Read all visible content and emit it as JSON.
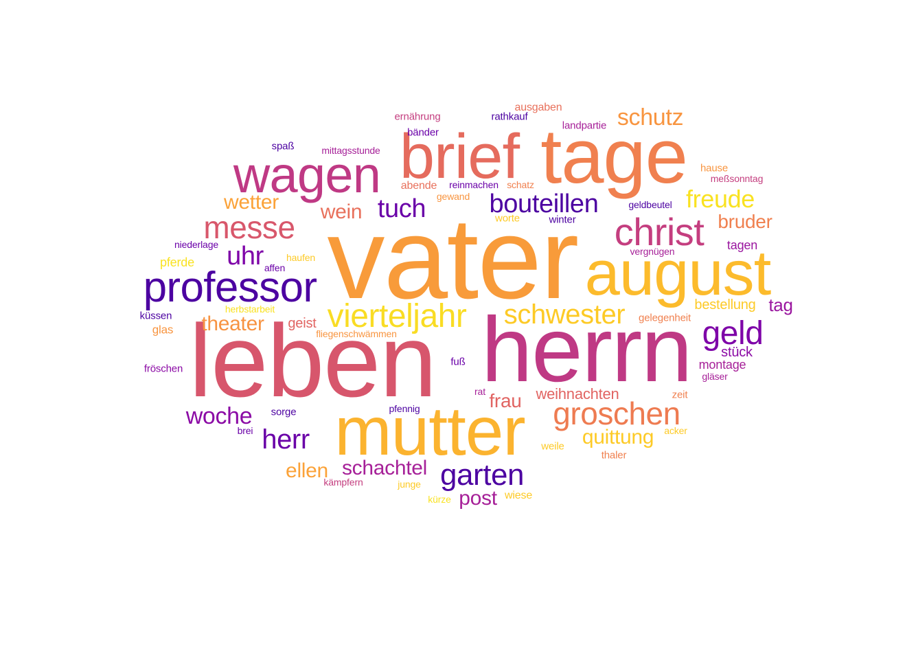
{
  "words": [
    {
      "text": "vater",
      "color": "#F89B3A"
    },
    {
      "text": "leben",
      "color": "#D7566C"
    },
    {
      "text": "herrn",
      "color": "#BF3984"
    },
    {
      "text": "mutter",
      "color": "#FBB32F"
    },
    {
      "text": "tage",
      "color": "#F0804F"
    },
    {
      "text": "brief",
      "color": "#E56B5D"
    },
    {
      "text": "august",
      "color": "#FCBB2C"
    },
    {
      "text": "wagen",
      "color": "#BF3984"
    },
    {
      "text": "professor",
      "color": "#4C02A1"
    },
    {
      "text": "christ",
      "color": "#C43E7F"
    },
    {
      "text": "vierteljahr",
      "color": "#F9DC24"
    },
    {
      "text": "geld",
      "color": "#7E03A8"
    },
    {
      "text": "groschen",
      "color": "#EE7B51"
    },
    {
      "text": "messe",
      "color": "#D8576B"
    },
    {
      "text": "schwester",
      "color": "#FDCA26"
    },
    {
      "text": "garten",
      "color": "#4C02A1"
    },
    {
      "text": "bouteillen",
      "color": "#4C02A1"
    },
    {
      "text": "schutz",
      "color": "#F89540"
    },
    {
      "text": "freude",
      "color": "#F9E221"
    },
    {
      "text": "tuch",
      "color": "#6A00A8"
    },
    {
      "text": "herr",
      "color": "#6A00A8"
    },
    {
      "text": "uhr",
      "color": "#7E03A8"
    },
    {
      "text": "woche",
      "color": "#8B0AA5"
    },
    {
      "text": "theater",
      "color": "#F79342"
    },
    {
      "text": "schachtel",
      "color": "#A62098"
    },
    {
      "text": "quittung",
      "color": "#FDCA26"
    },
    {
      "text": "wetter",
      "color": "#FBA238"
    },
    {
      "text": "wein",
      "color": "#E8705B"
    },
    {
      "text": "bruder",
      "color": "#F0804F"
    },
    {
      "text": "ellen",
      "color": "#FBA238"
    },
    {
      "text": "post",
      "color": "#A62098"
    },
    {
      "text": "frau",
      "color": "#E16462"
    },
    {
      "text": "tag",
      "color": "#9A169F"
    },
    {
      "text": "weihnachten",
      "color": "#E16462"
    },
    {
      "text": "bestellung",
      "color": "#FDCA26"
    },
    {
      "text": "geist",
      "color": "#E16462"
    },
    {
      "text": "stück",
      "color": "#8B0AA5"
    },
    {
      "text": "tagen",
      "color": "#9A169F"
    },
    {
      "text": "montage",
      "color": "#A62098"
    },
    {
      "text": "ausgaben",
      "color": "#E8705B"
    },
    {
      "text": "landpartie",
      "color": "#A62098"
    },
    {
      "text": "ernährung",
      "color": "#C43E7F"
    },
    {
      "text": "rathkauf",
      "color": "#4C02A1"
    },
    {
      "text": "bänder",
      "color": "#6A00A8"
    },
    {
      "text": "spaß",
      "color": "#4C02A1"
    },
    {
      "text": "mittagsstunde",
      "color": "#A62098"
    },
    {
      "text": "abende",
      "color": "#E8705B"
    },
    {
      "text": "reinmachen",
      "color": "#6A00A8"
    },
    {
      "text": "schatz",
      "color": "#F0804F"
    },
    {
      "text": "gewand",
      "color": "#F89540"
    },
    {
      "text": "hause",
      "color": "#F89540"
    },
    {
      "text": "meßsonntag",
      "color": "#C43E7F"
    },
    {
      "text": "geldbeutel",
      "color": "#4C02A1"
    },
    {
      "text": "worte",
      "color": "#FDCA26"
    },
    {
      "text": "winter",
      "color": "#4C02A1"
    },
    {
      "text": "niederlage",
      "color": "#6A00A8"
    },
    {
      "text": "vergnügen",
      "color": "#A62098"
    },
    {
      "text": "pferde",
      "color": "#F9E221"
    },
    {
      "text": "haufen",
      "color": "#FDCA26"
    },
    {
      "text": "affen",
      "color": "#6A00A8"
    },
    {
      "text": "herbstarbeit",
      "color": "#F9E221"
    },
    {
      "text": "gelegenheit",
      "color": "#F0804F"
    },
    {
      "text": "küssen",
      "color": "#4C02A1"
    },
    {
      "text": "glas",
      "color": "#F89540"
    },
    {
      "text": "fliegenschwämmen",
      "color": "#F89540"
    },
    {
      "text": "fröschen",
      "color": "#8B0AA5"
    },
    {
      "text": "fuß",
      "color": "#6A00A8"
    },
    {
      "text": "gläser",
      "color": "#A62098"
    },
    {
      "text": "rat",
      "color": "#A62098"
    },
    {
      "text": "zeit",
      "color": "#F0804F"
    },
    {
      "text": "sorge",
      "color": "#4C02A1"
    },
    {
      "text": "pfennig",
      "color": "#4C02A1"
    },
    {
      "text": "brei",
      "color": "#6A00A8"
    },
    {
      "text": "acker",
      "color": "#FDCA26"
    },
    {
      "text": "weile",
      "color": "#FDCA26"
    },
    {
      "text": "thaler",
      "color": "#F0804F"
    },
    {
      "text": "kämpfern",
      "color": "#C43E7F"
    },
    {
      "text": "junge",
      "color": "#FDCA26"
    },
    {
      "text": "kürze",
      "color": "#F9E221"
    },
    {
      "text": "wiese",
      "color": "#FDCA26"
    }
  ]
}
